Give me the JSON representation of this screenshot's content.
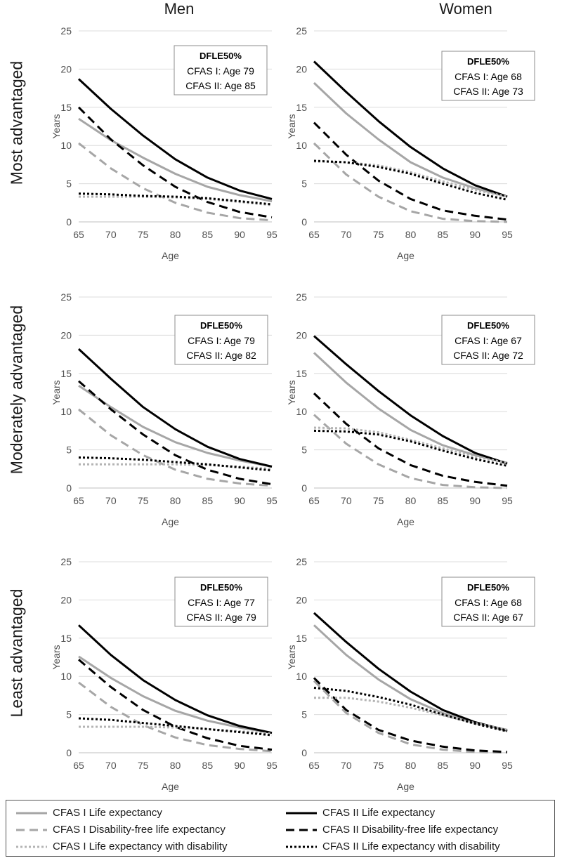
{
  "column_headers": [
    "Men",
    "Women"
  ],
  "row_headers": [
    "Most advantaged",
    "Moderately advantaged",
    "Least advantaged"
  ],
  "series_styles": [
    {
      "name": "CFAS I Life expectancy",
      "color": "#a6a6a6",
      "dash": "solid"
    },
    {
      "name": "CFAS II Life expectancy",
      "color": "#000000",
      "dash": "solid"
    },
    {
      "name": "CFAS I Disability-free life expectancy",
      "color": "#a6a6a6",
      "dash": "dashed"
    },
    {
      "name": "CFAS II Disability-free life expectancy",
      "color": "#000000",
      "dash": "dashed"
    },
    {
      "name": "CFAS I Life expectancy with disability",
      "color": "#b4b4b4",
      "dash": "dotted"
    },
    {
      "name": "CFAS II Life expectancy with disability",
      "color": "#000000",
      "dash": "dotted"
    }
  ],
  "chart_data": [
    {
      "type": "line",
      "row": "Most advantaged",
      "column": "Men",
      "xlabel": "Age",
      "ylabel": "Years",
      "xlim": [
        65,
        95
      ],
      "ylim": [
        0,
        25
      ],
      "x_ticks": [
        65,
        70,
        75,
        80,
        85,
        90,
        95
      ],
      "y_ticks": [
        0,
        5,
        10,
        15,
        20,
        25
      ],
      "grid": true,
      "x": [
        65,
        70,
        75,
        80,
        85,
        90,
        95
      ],
      "annotation": {
        "title": "DFLE50%",
        "lines": [
          "CFAS I: Age 79",
          "CFAS II: Age 85"
        ]
      },
      "series": [
        {
          "name": "CFAS I Life expectancy",
          "values": [
            13.5,
            10.7,
            8.4,
            6.3,
            4.6,
            3.5,
            2.7
          ]
        },
        {
          "name": "CFAS II Life expectancy",
          "values": [
            18.7,
            14.8,
            11.3,
            8.2,
            5.8,
            4.1,
            3.0
          ]
        },
        {
          "name": "CFAS I Disability-free life expectancy",
          "values": [
            10.3,
            7.0,
            4.4,
            2.5,
            1.2,
            0.5,
            0.2
          ]
        },
        {
          "name": "CFAS II Disability-free life expectancy",
          "values": [
            15.0,
            10.8,
            7.4,
            4.6,
            2.6,
            1.3,
            0.6
          ]
        },
        {
          "name": "CFAS I Life expectancy with disability",
          "values": [
            3.3,
            3.3,
            3.3,
            3.2,
            3.0,
            2.6,
            2.2
          ]
        },
        {
          "name": "CFAS II Life expectancy with disability",
          "values": [
            3.7,
            3.6,
            3.4,
            3.3,
            3.1,
            2.7,
            2.3
          ]
        }
      ]
    },
    {
      "type": "line",
      "row": "Most advantaged",
      "column": "Women",
      "xlabel": "Age",
      "ylabel": "Years",
      "xlim": [
        65,
        95
      ],
      "ylim": [
        0,
        25
      ],
      "x_ticks": [
        65,
        70,
        75,
        80,
        85,
        90,
        95
      ],
      "y_ticks": [
        0,
        5,
        10,
        15,
        20,
        25
      ],
      "grid": true,
      "x": [
        65,
        70,
        75,
        80,
        85,
        90,
        95
      ],
      "annotation": {
        "title": "DFLE50%",
        "lines": [
          "CFAS I: Age 68",
          "CFAS II: Age 73"
        ]
      },
      "series": [
        {
          "name": "CFAS I Life expectancy",
          "values": [
            18.2,
            14.2,
            10.8,
            7.8,
            5.8,
            4.4,
            3.3
          ]
        },
        {
          "name": "CFAS II Life expectancy",
          "values": [
            21.0,
            17.0,
            13.2,
            9.8,
            7.0,
            4.8,
            3.3
          ]
        },
        {
          "name": "CFAS I Disability-free life expectancy",
          "values": [
            10.3,
            6.2,
            3.3,
            1.4,
            0.4,
            0.1,
            0.0
          ]
        },
        {
          "name": "CFAS II Disability-free life expectancy",
          "values": [
            13.0,
            8.8,
            5.4,
            3.0,
            1.5,
            0.8,
            0.3
          ]
        },
        {
          "name": "CFAS I Life expectancy with disability",
          "values": [
            7.9,
            7.8,
            7.4,
            6.5,
            5.3,
            4.2,
            3.3
          ]
        },
        {
          "name": "CFAS II Life expectancy with disability",
          "values": [
            8.0,
            7.8,
            7.2,
            6.3,
            5.0,
            3.8,
            2.9
          ]
        }
      ]
    },
    {
      "type": "line",
      "row": "Moderately advantaged",
      "column": "Men",
      "xlabel": "Age",
      "ylabel": "Years",
      "xlim": [
        65,
        95
      ],
      "ylim": [
        0,
        25
      ],
      "x_ticks": [
        65,
        70,
        75,
        80,
        85,
        90,
        95
      ],
      "y_ticks": [
        0,
        5,
        10,
        15,
        20,
        25
      ],
      "grid": true,
      "x": [
        65,
        70,
        75,
        80,
        85,
        90,
        95
      ],
      "annotation": {
        "title": "DFLE50%",
        "lines": [
          "CFAS I: Age 79",
          "CFAS II: Age 82"
        ]
      },
      "series": [
        {
          "name": "CFAS I Life expectancy",
          "values": [
            13.4,
            10.6,
            8.0,
            6.0,
            4.6,
            3.6,
            2.8
          ]
        },
        {
          "name": "CFAS II Life expectancy",
          "values": [
            18.2,
            14.3,
            10.6,
            7.7,
            5.4,
            3.8,
            2.8
          ]
        },
        {
          "name": "CFAS I Disability-free life expectancy",
          "values": [
            10.3,
            6.9,
            4.3,
            2.4,
            1.2,
            0.6,
            0.3
          ]
        },
        {
          "name": "CFAS II Disability-free life expectancy",
          "values": [
            14.0,
            10.3,
            7.0,
            4.3,
            2.4,
            1.2,
            0.5
          ]
        },
        {
          "name": "CFAS I Life expectancy with disability",
          "values": [
            3.1,
            3.1,
            3.1,
            3.1,
            3.0,
            2.8,
            2.5
          ]
        },
        {
          "name": "CFAS II Life expectancy with disability",
          "values": [
            4.0,
            3.9,
            3.7,
            3.4,
            3.1,
            2.7,
            2.3
          ]
        }
      ]
    },
    {
      "type": "line",
      "row": "Moderately advantaged",
      "column": "Women",
      "xlabel": "Age",
      "ylabel": "Years",
      "xlim": [
        65,
        95
      ],
      "ylim": [
        0,
        25
      ],
      "x_ticks": [
        65,
        70,
        75,
        80,
        85,
        90,
        95
      ],
      "y_ticks": [
        0,
        5,
        10,
        15,
        20,
        25
      ],
      "grid": true,
      "x": [
        65,
        70,
        75,
        80,
        85,
        90,
        95
      ],
      "annotation": {
        "title": "DFLE50%",
        "lines": [
          "CFAS I: Age 67",
          "CFAS II: Age 72"
        ]
      },
      "series": [
        {
          "name": "CFAS I Life expectancy",
          "values": [
            17.7,
            13.8,
            10.4,
            7.6,
            5.6,
            4.3,
            3.3
          ]
        },
        {
          "name": "CFAS II Life expectancy",
          "values": [
            19.9,
            16.2,
            12.7,
            9.5,
            6.8,
            4.6,
            3.2
          ]
        },
        {
          "name": "CFAS I Disability-free life expectancy",
          "values": [
            9.6,
            5.8,
            3.1,
            1.3,
            0.4,
            0.1,
            0.0
          ]
        },
        {
          "name": "CFAS II Disability-free life expectancy",
          "values": [
            12.4,
            8.4,
            5.2,
            3.0,
            1.6,
            0.8,
            0.3
          ]
        },
        {
          "name": "CFAS I Life expectancy with disability",
          "values": [
            7.9,
            7.8,
            7.3,
            6.3,
            5.2,
            4.1,
            3.3
          ]
        },
        {
          "name": "CFAS II Life expectancy with disability",
          "values": [
            7.5,
            7.4,
            7.0,
            6.1,
            4.9,
            3.8,
            2.9
          ]
        }
      ]
    },
    {
      "type": "line",
      "row": "Least advantaged",
      "column": "Men",
      "xlabel": "Age",
      "ylabel": "Years",
      "xlim": [
        65,
        95
      ],
      "ylim": [
        0,
        25
      ],
      "x_ticks": [
        65,
        70,
        75,
        80,
        85,
        90,
        95
      ],
      "y_ticks": [
        0,
        5,
        10,
        15,
        20,
        25
      ],
      "grid": true,
      "x": [
        65,
        70,
        75,
        80,
        85,
        90,
        95
      ],
      "annotation": {
        "title": "DFLE50%",
        "lines": [
          "CFAS I: Age 77",
          "CFAS II: Age 79"
        ]
      },
      "series": [
        {
          "name": "CFAS I Life expectancy",
          "values": [
            12.6,
            9.8,
            7.4,
            5.5,
            4.2,
            3.3,
            2.6
          ]
        },
        {
          "name": "CFAS II Life expectancy",
          "values": [
            16.7,
            12.8,
            9.5,
            6.9,
            4.9,
            3.5,
            2.6
          ]
        },
        {
          "name": "CFAS I Disability-free life expectancy",
          "values": [
            9.2,
            6.0,
            3.6,
            2.0,
            1.0,
            0.5,
            0.2
          ]
        },
        {
          "name": "CFAS II Disability-free life expectancy",
          "values": [
            12.2,
            8.6,
            5.6,
            3.4,
            1.9,
            0.9,
            0.4
          ]
        },
        {
          "name": "CFAS I Life expectancy with disability",
          "values": [
            3.4,
            3.4,
            3.4,
            3.3,
            3.1,
            2.8,
            2.5
          ]
        },
        {
          "name": "CFAS II Life expectancy with disability",
          "values": [
            4.5,
            4.3,
            3.9,
            3.5,
            3.1,
            2.7,
            2.3
          ]
        }
      ]
    },
    {
      "type": "line",
      "row": "Least advantaged",
      "column": "Women",
      "xlabel": "Age",
      "ylabel": "Years",
      "xlim": [
        65,
        95
      ],
      "ylim": [
        0,
        25
      ],
      "x_ticks": [
        65,
        70,
        75,
        80,
        85,
        90,
        95
      ],
      "y_ticks": [
        0,
        5,
        10,
        15,
        20,
        25
      ],
      "grid": true,
      "x": [
        65,
        70,
        75,
        80,
        85,
        90,
        95
      ],
      "annotation": {
        "title": "DFLE50%",
        "lines": [
          "CFAS I: Age 68",
          "CFAS II: Age 67"
        ]
      },
      "series": [
        {
          "name": "CFAS I Life expectancy",
          "values": [
            16.7,
            12.8,
            9.6,
            7.0,
            5.2,
            3.9,
            3.0
          ]
        },
        {
          "name": "CFAS II Life expectancy",
          "values": [
            18.3,
            14.5,
            11.0,
            8.0,
            5.6,
            4.0,
            2.9
          ]
        },
        {
          "name": "CFAS I Disability-free life expectancy",
          "values": [
            9.4,
            5.2,
            2.6,
            1.1,
            0.4,
            0.1,
            0.0
          ]
        },
        {
          "name": "CFAS II Disability-free life expectancy",
          "values": [
            9.8,
            5.6,
            3.0,
            1.6,
            0.8,
            0.3,
            0.1
          ]
        },
        {
          "name": "CFAS I Life expectancy with disability",
          "values": [
            7.2,
            7.2,
            6.7,
            5.9,
            4.9,
            3.9,
            3.0
          ]
        },
        {
          "name": "CFAS II Life expectancy with disability",
          "values": [
            8.5,
            8.1,
            7.3,
            6.3,
            5.0,
            3.8,
            2.8
          ]
        }
      ]
    }
  ]
}
